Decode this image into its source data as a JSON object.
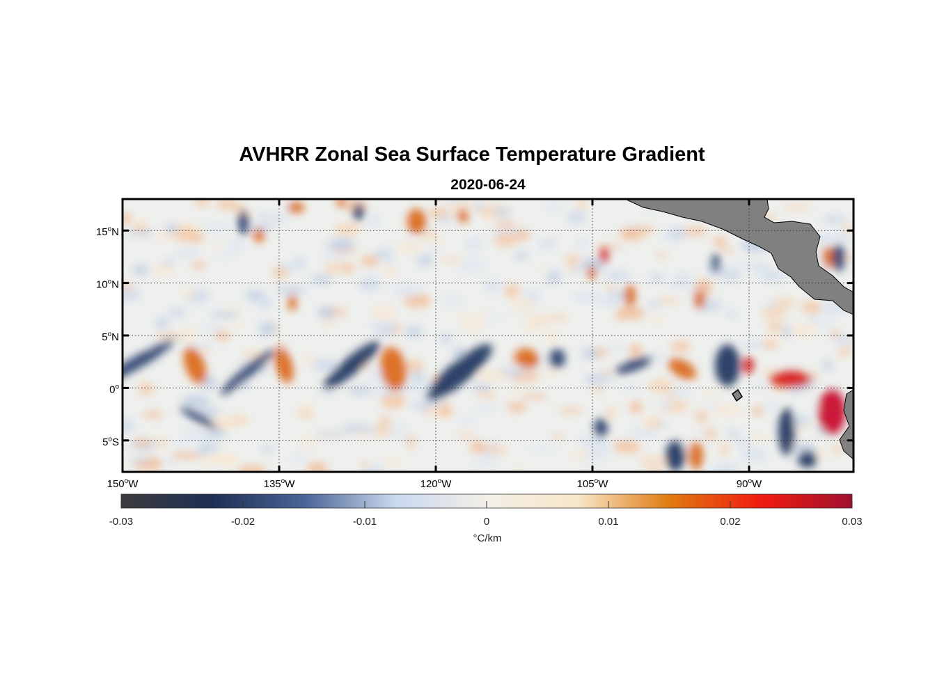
{
  "figure": {
    "title": "AVHRR Zonal Sea Surface Temperature Gradient",
    "subtitle": "2020-06-24"
  },
  "map": {
    "lon_range": [
      -150,
      -80
    ],
    "lat_range": [
      -8,
      18
    ],
    "lon_ticks": [
      {
        "value": -150,
        "num": "150",
        "deg": "o",
        "hem": "W"
      },
      {
        "value": -135,
        "num": "135",
        "deg": "o",
        "hem": "W"
      },
      {
        "value": -120,
        "num": "120",
        "deg": "o",
        "hem": "W"
      },
      {
        "value": -105,
        "num": "105",
        "deg": "o",
        "hem": "W"
      },
      {
        "value": -90,
        "num": "90",
        "deg": "o",
        "hem": "W"
      }
    ],
    "lat_ticks": [
      {
        "value": 15,
        "num": "15",
        "deg": "o",
        "hem": "N"
      },
      {
        "value": 10,
        "num": "10",
        "deg": "o",
        "hem": "N"
      },
      {
        "value": 5,
        "num": "5",
        "deg": "o",
        "hem": "N"
      },
      {
        "value": 0,
        "num": "0",
        "deg": "o",
        "hem": ""
      },
      {
        "value": -5,
        "num": "5",
        "deg": "o",
        "hem": "S"
      }
    ],
    "grid": true,
    "land_color": "#808080"
  },
  "colorbar": {
    "unit_label": "°C/km",
    "range": [
      -0.03,
      0.03
    ],
    "ticks": [
      {
        "value": -0.03,
        "label": "-0.03"
      },
      {
        "value": -0.02,
        "label": "-0.02"
      },
      {
        "value": -0.01,
        "label": "-0.01"
      },
      {
        "value": 0,
        "label": "0"
      },
      {
        "value": 0.01,
        "label": "0.01"
      },
      {
        "value": 0.02,
        "label": "0.02"
      },
      {
        "value": 0.03,
        "label": "0.03"
      }
    ],
    "stops": [
      "#3c3c3c",
      "#1e2f55",
      "#4a6496",
      "#c9d8ee",
      "#f3efe8",
      "#f8e7c8",
      "#e07a10",
      "#f01c10",
      "#a01030"
    ]
  }
}
